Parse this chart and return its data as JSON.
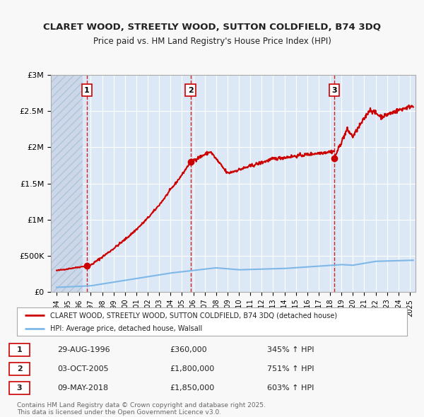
{
  "title": "CLARET WOOD, STREETLY WOOD, SUTTON COLDFIELD, B74 3DQ",
  "subtitle": "Price paid vs. HM Land Registry's House Price Index (HPI)",
  "bg_color": "#f8f8f8",
  "plot_bg_color": "#dce8f5",
  "grid_color": "#ffffff",
  "ylim": [
    0,
    3000000
  ],
  "yticks": [
    0,
    500000,
    1000000,
    1500000,
    2000000,
    2500000,
    3000000
  ],
  "ytick_labels": [
    "£0",
    "£500K",
    "£1M",
    "£1.5M",
    "£2M",
    "£2.5M",
    "£3M"
  ],
  "xlim_start": 1993.5,
  "xlim_end": 2025.5,
  "xticks": [
    1994,
    1995,
    1996,
    1997,
    1998,
    1999,
    2000,
    2001,
    2002,
    2003,
    2004,
    2005,
    2006,
    2007,
    2008,
    2009,
    2010,
    2011,
    2012,
    2013,
    2014,
    2015,
    2016,
    2017,
    2018,
    2019,
    2020,
    2021,
    2022,
    2023,
    2024,
    2025
  ],
  "sale_color": "#cc0000",
  "hpi_color": "#7eb8e8",
  "sale_label": "CLARET WOOD, STREETLY WOOD, SUTTON COLDFIELD, B74 3DQ (detached house)",
  "hpi_label": "HPI: Average price, detached house, Walsall",
  "transaction_dates": [
    1996.66,
    2005.75,
    2018.36
  ],
  "transaction_prices": [
    360000,
    1800000,
    1850000
  ],
  "transaction_labels": [
    "1",
    "2",
    "3"
  ],
  "transaction_date_strs": [
    "29-AUG-1996",
    "03-OCT-2005",
    "09-MAY-2018"
  ],
  "transaction_prices_str": [
    "£360,000",
    "£1,800,000",
    "£1,850,000"
  ],
  "transaction_pct": [
    "345% ↑ HPI",
    "751% ↑ HPI",
    "603% ↑ HPI"
  ],
  "footer": "Contains HM Land Registry data © Crown copyright and database right 2025.\nThis data is licensed under the Open Government Licence v3.0."
}
